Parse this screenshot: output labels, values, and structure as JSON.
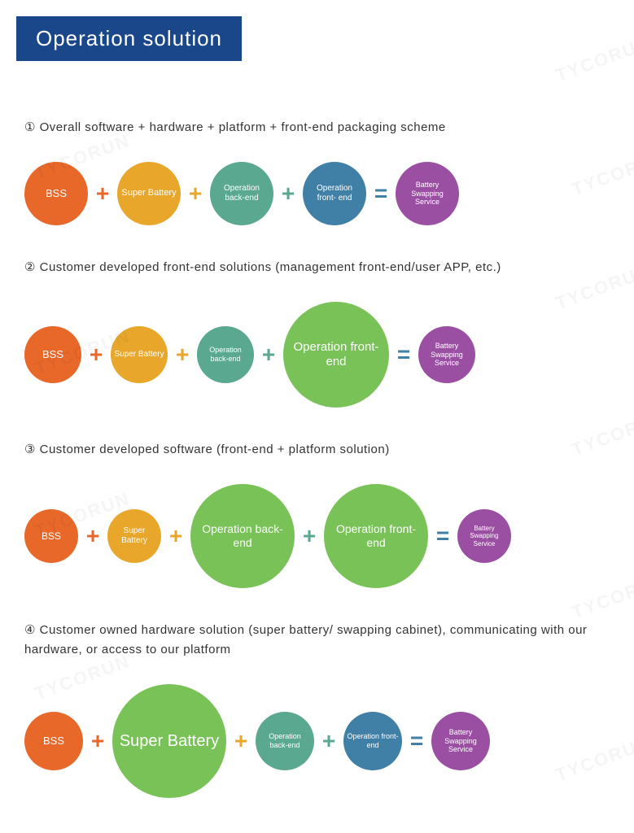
{
  "title": "Operation solution",
  "title_bg": "#1a4789",
  "title_color": "#ffffff",
  "watermark_text": "TYCORUN",
  "sections": [
    {
      "number": "①",
      "heading": "Overall software + hardware + platform + front-end packaging scheme",
      "nodes": [
        {
          "label": "BSS",
          "color": "#e8682a",
          "size": 78,
          "fontsize": 13
        },
        {
          "op": "+",
          "color": "#e8682a"
        },
        {
          "label": "Super Battery",
          "color": "#e8a72a",
          "size": 78,
          "fontsize": 11
        },
        {
          "op": "+",
          "color": "#e8a72a"
        },
        {
          "label": "Operation back-end",
          "color": "#5aa890",
          "size": 78,
          "fontsize": 10
        },
        {
          "op": "+",
          "color": "#5aa890"
        },
        {
          "label": "Operation front- end",
          "color": "#4180a6",
          "size": 78,
          "fontsize": 10
        },
        {
          "op": "=",
          "color": "#4180a6"
        },
        {
          "label": "Battery Swapping Service",
          "color": "#9b4fa3",
          "size": 78,
          "fontsize": 9
        }
      ]
    },
    {
      "number": "②",
      "heading": "Customer developed front-end solutions (management front-end/user APP, etc.)",
      "nodes": [
        {
          "label": "BSS",
          "color": "#e8682a",
          "size": 70,
          "fontsize": 13
        },
        {
          "op": "+",
          "color": "#e8682a"
        },
        {
          "label": "Super Battery",
          "color": "#e8a72a",
          "size": 70,
          "fontsize": 10
        },
        {
          "op": "+",
          "color": "#e8a72a"
        },
        {
          "label": "Operation back-end",
          "color": "#5aa890",
          "size": 70,
          "fontsize": 9
        },
        {
          "op": "+",
          "color": "#5aa890"
        },
        {
          "label": "Operation front- end",
          "color": "#78c257",
          "size": 130,
          "fontsize": 15
        },
        {
          "op": "=",
          "color": "#4180a6"
        },
        {
          "label": "Battery Swapping Service",
          "color": "#9b4fa3",
          "size": 70,
          "fontsize": 9
        }
      ]
    },
    {
      "number": "③",
      "heading": "Customer developed software (front-end + platform solution)",
      "nodes": [
        {
          "label": "BSS",
          "color": "#e8682a",
          "size": 66,
          "fontsize": 12
        },
        {
          "op": "+",
          "color": "#e8682a"
        },
        {
          "label": "Super Battery",
          "color": "#e8a72a",
          "size": 66,
          "fontsize": 10
        },
        {
          "op": "+",
          "color": "#e8a72a"
        },
        {
          "label": "Operation back-end",
          "color": "#78c257",
          "size": 128,
          "fontsize": 14
        },
        {
          "op": "+",
          "color": "#5aa890"
        },
        {
          "label": "Operation front-end",
          "color": "#78c257",
          "size": 128,
          "fontsize": 14
        },
        {
          "op": "=",
          "color": "#4180a6"
        },
        {
          "label": "Battery Swapping Service",
          "color": "#9b4fa3",
          "size": 66,
          "fontsize": 8
        }
      ]
    },
    {
      "number": "④",
      "heading": "Customer owned hardware solution (super battery/ swapping cabinet), communicating with our hardware, or access to our platform",
      "nodes": [
        {
          "label": "BSS",
          "color": "#e8682a",
          "size": 72,
          "fontsize": 13
        },
        {
          "op": "+",
          "color": "#e8682a"
        },
        {
          "label": "Super Battery",
          "color": "#78c257",
          "size": 140,
          "fontsize": 20
        },
        {
          "op": "+",
          "color": "#e8a72a"
        },
        {
          "label": "Operation back-end",
          "color": "#5aa890",
          "size": 72,
          "fontsize": 9
        },
        {
          "op": "+",
          "color": "#5aa890"
        },
        {
          "label": "Operation front- end",
          "color": "#4180a6",
          "size": 72,
          "fontsize": 9
        },
        {
          "op": "=",
          "color": "#4180a6"
        },
        {
          "label": "Battery Swapping Service",
          "color": "#9b4fa3",
          "size": 72,
          "fontsize": 9
        }
      ]
    }
  ]
}
